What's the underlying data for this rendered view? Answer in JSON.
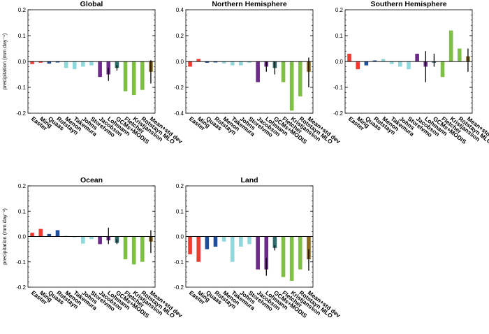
{
  "figure": {
    "ylabel": "precipitation (mm day⁻¹)",
    "models": [
      "Easter",
      "Ming",
      "Quaas",
      "Rotstayn",
      "Menon",
      "Takemura",
      "Johns",
      "Storelvmo",
      "Jacobson",
      "Lohmann",
      "GCMs+MODIS",
      "Fletcher",
      "Kristjansson",
      "Rotstayn MLO",
      "Mean+std dev"
    ],
    "colors": [
      "#ee3b2f",
      "#ee3b2f",
      "#1f4f9c",
      "#1f4f9c",
      "#8fd8dc",
      "#8fd8dc",
      "#8fd8dc",
      "#8fd8dc",
      "#6c2a8a",
      "#6c2a8a",
      "#2e6b6b",
      "#7ec043",
      "#7ec043",
      "#7ec043",
      "#8a6a1f"
    ]
  },
  "chart_data": [
    {
      "type": "bar",
      "title": "Global",
      "ylabel": "precipitation (mm day⁻¹)",
      "ylim": [
        -0.2,
        0.2
      ],
      "yticks": [
        -0.2,
        -0.1,
        0.0,
        0.1,
        0.2
      ],
      "ytick_labels": [
        "-0.2",
        "-0.1",
        "0.0",
        "0.1",
        "0.2"
      ],
      "categories": [
        "Easter",
        "Ming",
        "Quaas",
        "Rotstayn",
        "Menon",
        "Takemura",
        "Johns",
        "Storelvmo",
        "Jacobson",
        "Lohmann",
        "GCMs+MODIS",
        "Fletcher",
        "Kristjansson",
        "Rotstayn MLO",
        "Mean+std dev"
      ],
      "values": [
        -0.01,
        -0.005,
        -0.008,
        -0.004,
        -0.025,
        -0.03,
        -0.02,
        -0.015,
        -0.06,
        -0.05,
        -0.025,
        -0.115,
        -0.13,
        -0.11,
        -0.04
      ],
      "error_bars": [
        {
          "index": 9,
          "low": -0.075,
          "high": -0.025
        },
        {
          "index": 10,
          "low": -0.035,
          "high": -0.015
        },
        {
          "index": 14,
          "low": -0.085,
          "high": 0.005
        }
      ]
    },
    {
      "type": "bar",
      "title": "Northern Hemisphere",
      "ylabel": "",
      "ylim": [
        -0.4,
        0.4
      ],
      "yticks": [
        -0.4,
        -0.2,
        0.0,
        0.2,
        0.4
      ],
      "ytick_labels": [
        "-0.4",
        "-0.2",
        "0.0",
        "0.2",
        "0.4"
      ],
      "categories": [
        "Easter",
        "Ming",
        "Quaas",
        "Rotstayn",
        "Menon",
        "Takemura",
        "Johns",
        "Storelvmo",
        "Jacobson",
        "Lohmann",
        "GCMs+MODIS",
        "Fletcher",
        "Kristjansson",
        "Rotstayn MLO",
        "Mean+std dev"
      ],
      "values": [
        -0.04,
        0.02,
        -0.01,
        -0.008,
        -0.015,
        -0.03,
        -0.03,
        -0.01,
        -0.16,
        -0.04,
        -0.05,
        -0.16,
        -0.38,
        -0.27,
        -0.08
      ],
      "error_bars": [
        {
          "index": 9,
          "low": -0.08,
          "high": 0.0
        },
        {
          "index": 10,
          "low": -0.1,
          "high": 0.0
        },
        {
          "index": 14,
          "low": -0.2,
          "high": 0.03
        }
      ]
    },
    {
      "type": "bar",
      "title": "Southern Hemisphere",
      "ylabel": "",
      "ylim": [
        -0.2,
        0.2
      ],
      "yticks": [
        -0.2,
        -0.1,
        0.0,
        0.1,
        0.2
      ],
      "ytick_labels": [
        "-0.2",
        "-0.1",
        "0.0",
        "0.1",
        "0.2"
      ],
      "categories": [
        "Easter",
        "Ming",
        "Quaas",
        "Rotstayn",
        "Menon",
        "Takemura",
        "Johns",
        "Storelvmo",
        "Jacobson",
        "Lohmann",
        "GCMs+MODIS",
        "Fletcher",
        "Kristjansson",
        "Rotstayn MLO",
        "Mean+std dev"
      ],
      "values": [
        0.03,
        -0.03,
        -0.015,
        0.004,
        0.01,
        -0.01,
        -0.02,
        -0.03,
        0.03,
        -0.02,
        -0.005,
        -0.06,
        0.12,
        0.05,
        0.02
      ],
      "error_bars": [
        {
          "index": 9,
          "low": -0.08,
          "high": 0.04
        },
        {
          "index": 10,
          "low": -0.02,
          "high": 0.03
        },
        {
          "index": 14,
          "low": -0.04,
          "high": 0.05
        }
      ]
    },
    {
      "type": "bar",
      "title": "Ocean",
      "ylabel": "precipitation (mm day⁻¹)",
      "ylim": [
        -0.2,
        0.2
      ],
      "yticks": [
        -0.2,
        -0.1,
        0.0,
        0.1,
        0.2
      ],
      "ytick_labels": [
        "-0.2",
        "-0.1",
        "0.0",
        "0.1",
        "0.2"
      ],
      "categories": [
        "Easter",
        "Ming",
        "Quaas",
        "Rotstayn",
        "Menon",
        "Takemura",
        "Johns",
        "Storelvmo",
        "Jacobson",
        "Lohmann",
        "GCMs+MODIS",
        "Fletcher",
        "Kristjansson",
        "Rotstayn MLO",
        "Mean+std dev"
      ],
      "values": [
        0.015,
        0.03,
        0.01,
        0.025,
        0.003,
        -0.003,
        -0.028,
        -0.01,
        -0.03,
        -0.015,
        -0.025,
        -0.09,
        -0.11,
        -0.1,
        -0.02
      ],
      "error_bars": [
        {
          "index": 9,
          "low": -0.03,
          "high": 0.035
        },
        {
          "index": 10,
          "low": -0.03,
          "high": -0.01
        },
        {
          "index": 14,
          "low": -0.065,
          "high": 0.025
        }
      ]
    },
    {
      "type": "bar",
      "title": "Land",
      "ylabel": "",
      "ylim": [
        -0.2,
        0.2
      ],
      "yticks": [
        -0.2,
        -0.1,
        0.0,
        0.1,
        0.2
      ],
      "ytick_labels": [
        "-0.2",
        "-0.1",
        "0.0",
        "0.1",
        "0.2"
      ],
      "categories": [
        "Easter",
        "Ming",
        "Quaas",
        "Rotstayn",
        "Menon",
        "Takemura",
        "Johns",
        "Storelvmo",
        "Jacobson",
        "Lohmann",
        "GCMs+MODIS",
        "Fletcher",
        "Kristjansson",
        "Rotstayn MLO",
        "Mean+std dev"
      ],
      "values": [
        -0.07,
        -0.1,
        -0.05,
        -0.04,
        -0.02,
        -0.1,
        -0.04,
        -0.03,
        -0.13,
        -0.13,
        -0.045,
        -0.16,
        -0.175,
        -0.13,
        -0.09
      ],
      "error_bars": [
        {
          "index": 9,
          "low": -0.155,
          "high": -0.085
        },
        {
          "index": 10,
          "low": -0.055,
          "high": -0.035
        },
        {
          "index": 14,
          "low": -0.135,
          "high": -0.05
        }
      ]
    }
  ]
}
